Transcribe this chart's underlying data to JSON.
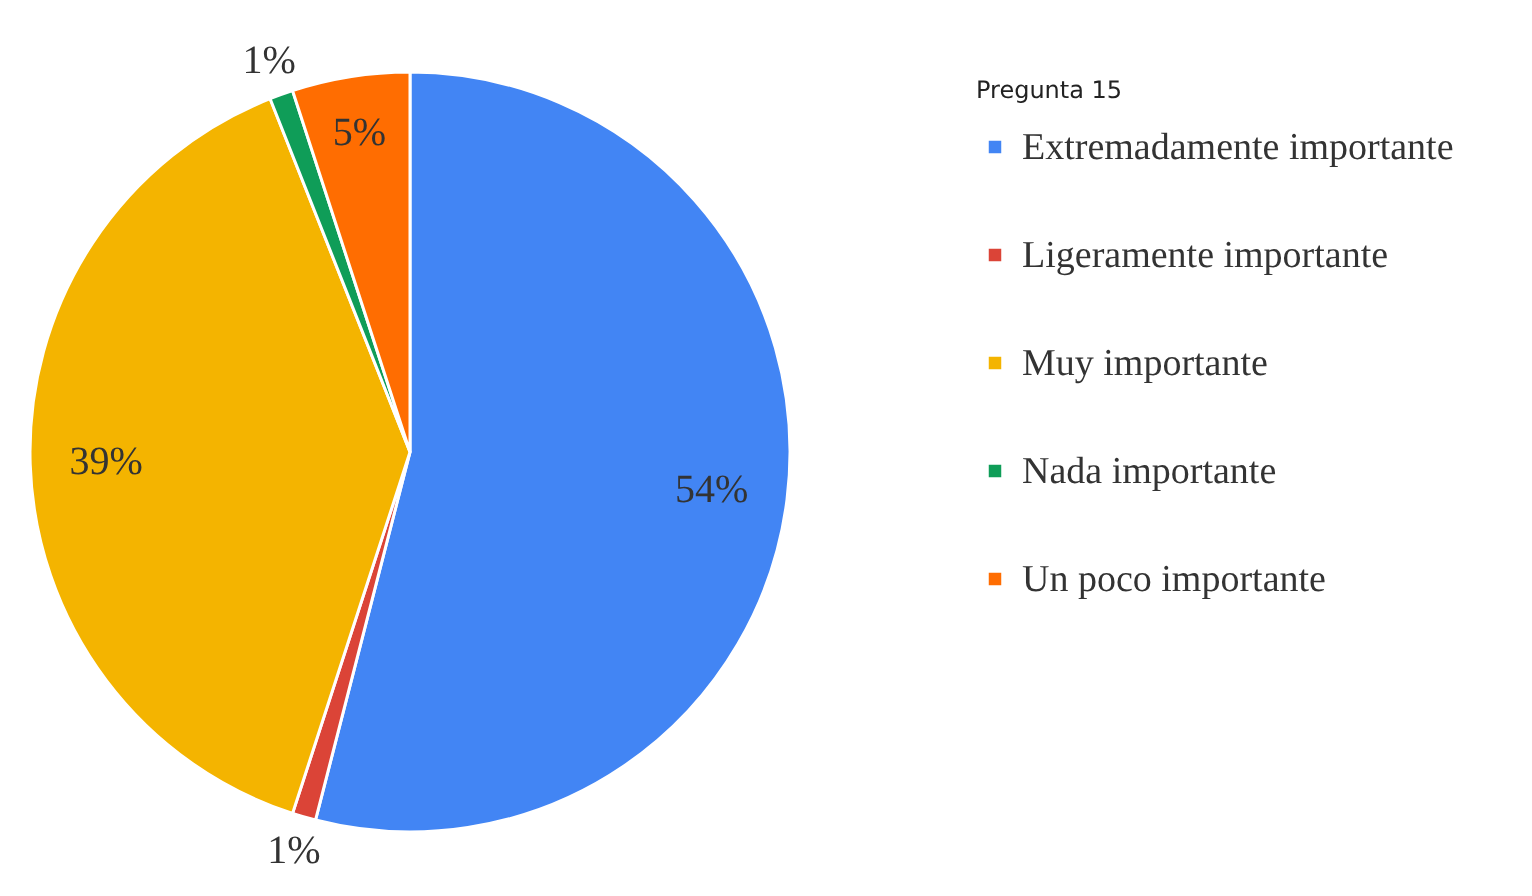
{
  "chart_data": {
    "type": "pie",
    "legend_title": "Pregunta 15",
    "legend": "right",
    "categories": [
      "Extremadamente importante",
      "Ligeramente importante",
      "Muy importante",
      "Nada importante",
      "Un poco importante"
    ],
    "values": [
      54,
      1,
      39,
      1,
      5
    ],
    "colors": [
      "#4285f4",
      "#db4437",
      "#f4b400",
      "#0f9d58",
      "#ff6d01"
    ],
    "value_labels": [
      "54%",
      "1%",
      "39%",
      "1%",
      "5%"
    ]
  }
}
